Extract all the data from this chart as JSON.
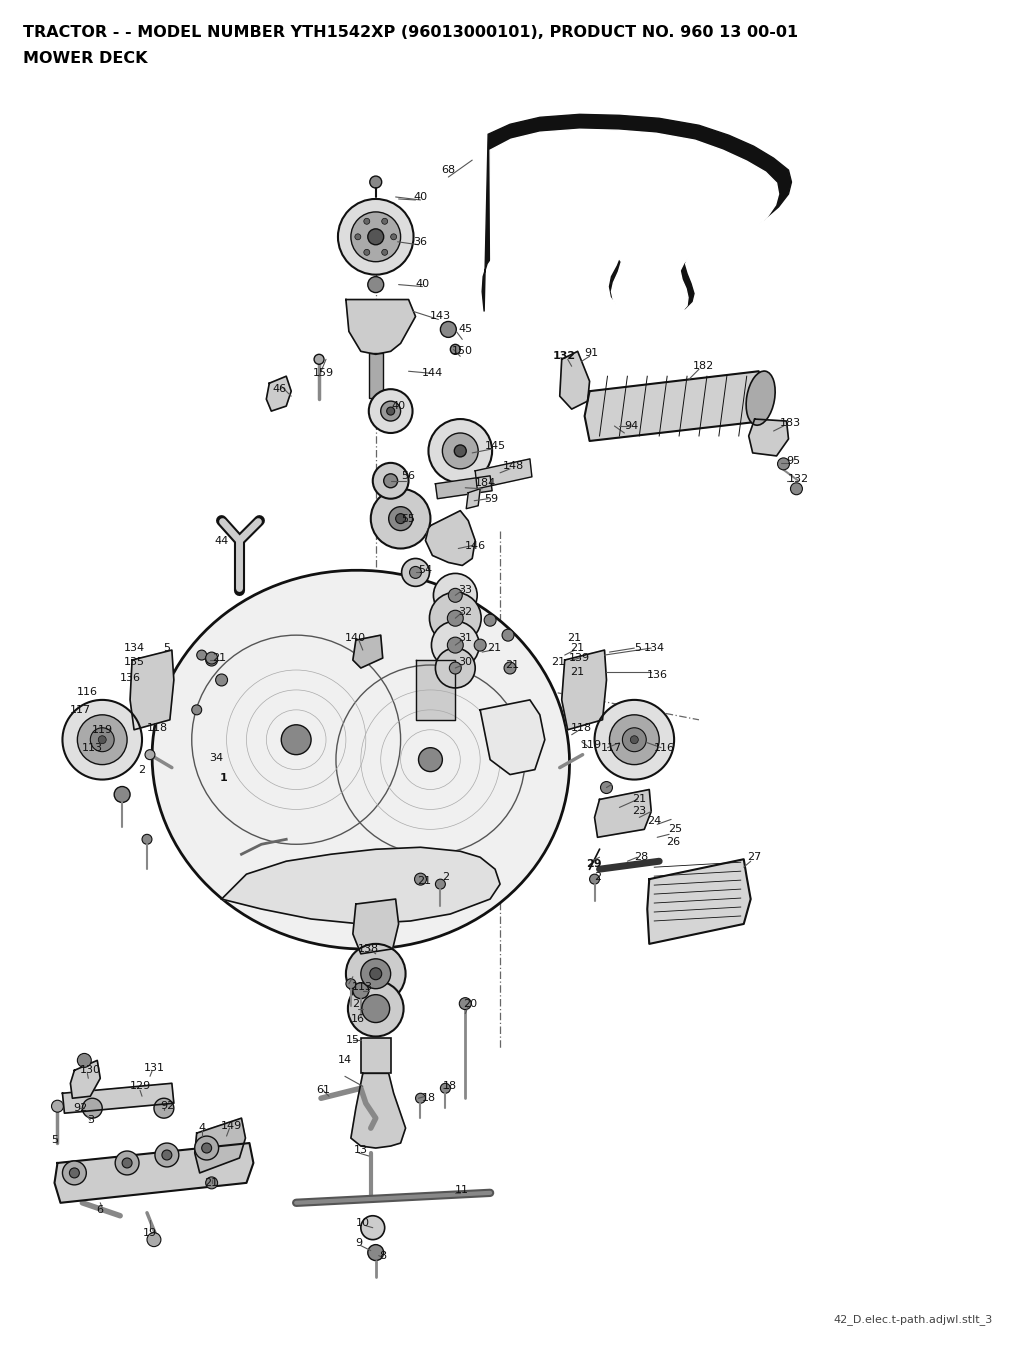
{
  "title_line1": "TRACTOR - - MODEL NUMBER YTH1542XP (96013000101), PRODUCT NO. 960 13 00-01",
  "title_line2": "MOWER DECK",
  "footer_text": "42_D.elec.t-path.adjwl.stlt_3",
  "background_color": "#ffffff",
  "title_fontsize": 11.5,
  "footer_fontsize": 8,
  "fig_width": 10.24,
  "fig_height": 13.45,
  "dpi": 100
}
